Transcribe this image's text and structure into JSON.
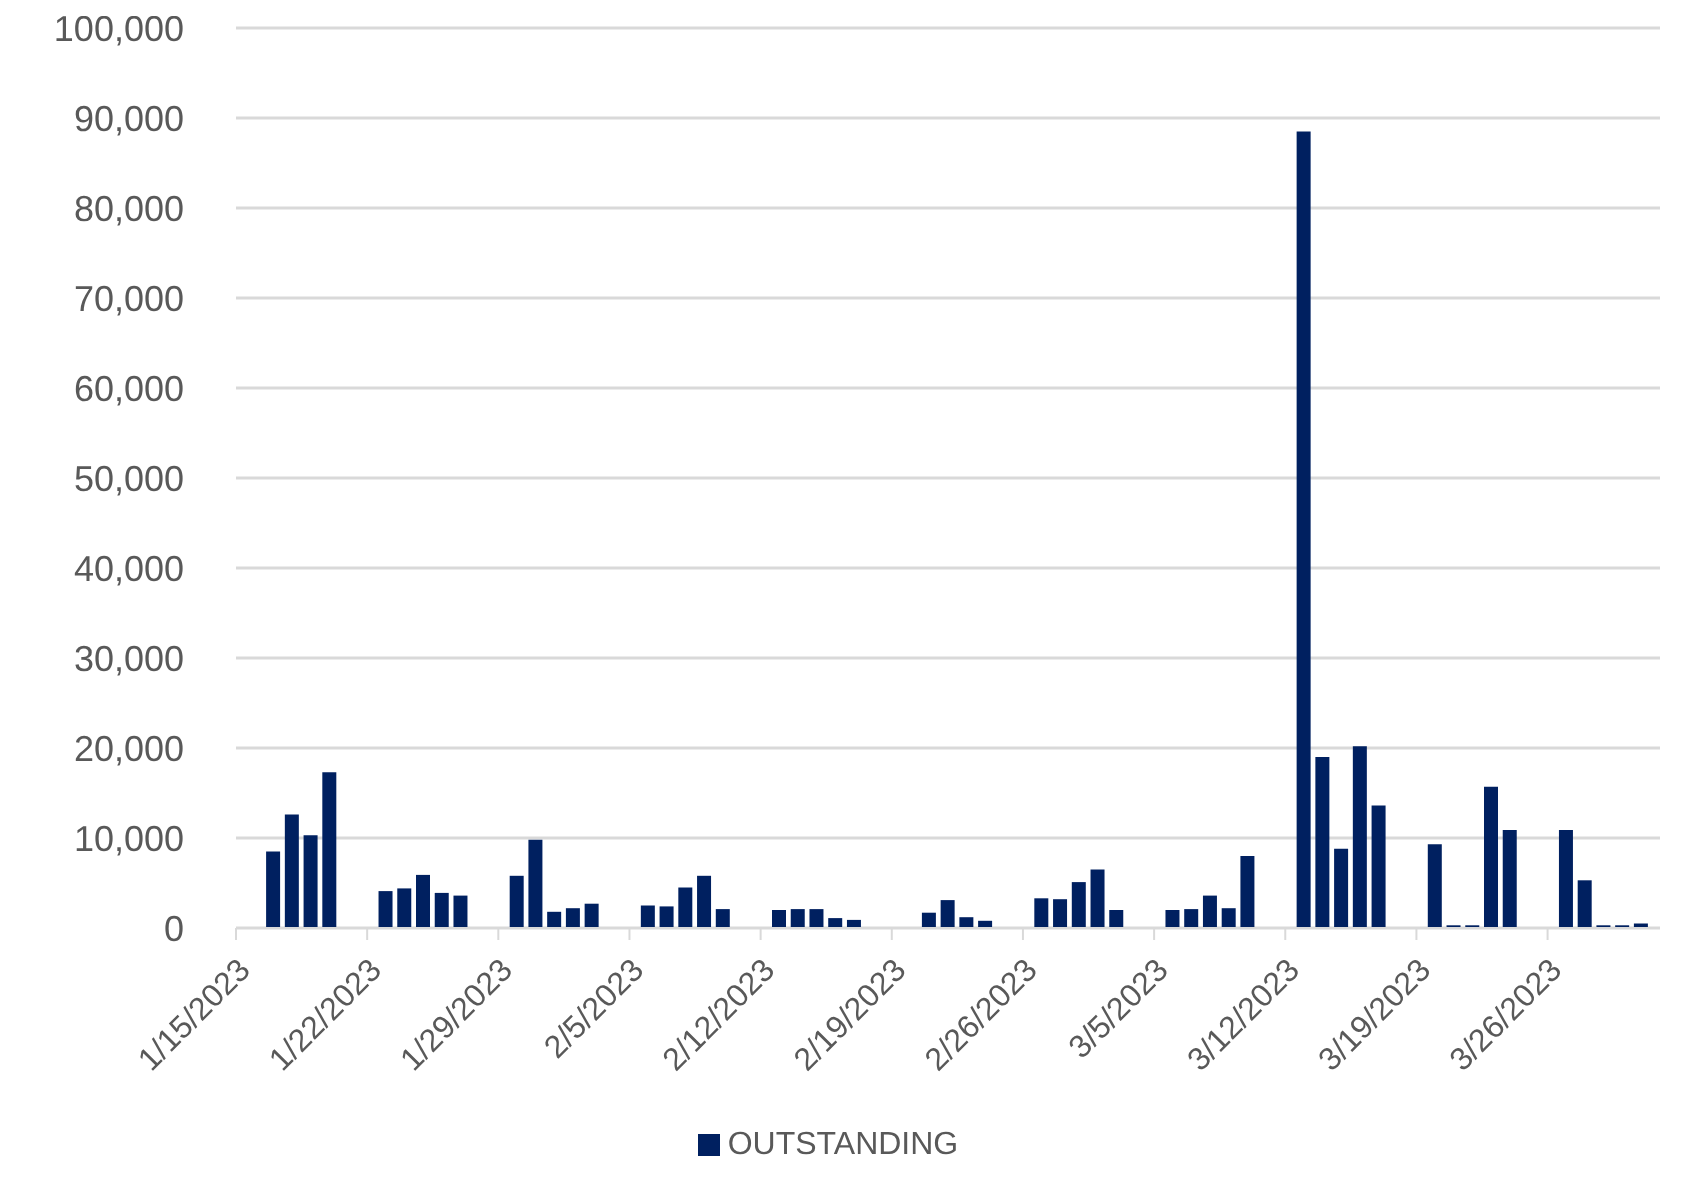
{
  "chart_data": {
    "type": "bar",
    "x": [
      "2023-01-17",
      "2023-01-18",
      "2023-01-19",
      "2023-01-20",
      "2023-01-23",
      "2023-01-24",
      "2023-01-25",
      "2023-01-26",
      "2023-01-27",
      "2023-01-30",
      "2023-01-31",
      "2023-02-01",
      "2023-02-02",
      "2023-02-03",
      "2023-02-06",
      "2023-02-07",
      "2023-02-08",
      "2023-02-09",
      "2023-02-10",
      "2023-02-13",
      "2023-02-14",
      "2023-02-15",
      "2023-02-16",
      "2023-02-17",
      "2023-02-21",
      "2023-02-22",
      "2023-02-23",
      "2023-02-24",
      "2023-02-27",
      "2023-02-28",
      "2023-03-01",
      "2023-03-02",
      "2023-03-03",
      "2023-03-06",
      "2023-03-07",
      "2023-03-08",
      "2023-03-09",
      "2023-03-10",
      "2023-03-13",
      "2023-03-14",
      "2023-03-15",
      "2023-03-16",
      "2023-03-17",
      "2023-03-20",
      "2023-03-21",
      "2023-03-22",
      "2023-03-23",
      "2023-03-24",
      "2023-03-27",
      "2023-03-28",
      "2023-03-29",
      "2023-03-30",
      "2023-03-31"
    ],
    "series": [
      {
        "name": "OUTSTANDING",
        "color": "#002060",
        "values": [
          8500,
          12600,
          10300,
          17300,
          4100,
          4400,
          5900,
          3900,
          3600,
          5800,
          9800,
          1800,
          2200,
          2700,
          2500,
          2400,
          4500,
          5800,
          2100,
          2000,
          2100,
          2100,
          1100,
          900,
          1700,
          3100,
          1200,
          800,
          3300,
          3200,
          5100,
          6500,
          2000,
          2000,
          2100,
          3600,
          2200,
          8000,
          88500,
          19000,
          8800,
          20200,
          13600,
          9300,
          300,
          300,
          15700,
          10900,
          10900,
          5300,
          300,
          300,
          500
        ]
      }
    ],
    "xlim": [
      "2023-01-15",
      "2023-04-01"
    ],
    "xticks": [
      {
        "value": "2023-01-15",
        "label": "1/15/2023"
      },
      {
        "value": "2023-01-22",
        "label": "1/22/2023"
      },
      {
        "value": "2023-01-29",
        "label": "1/29/2023"
      },
      {
        "value": "2023-02-05",
        "label": "2/5/2023"
      },
      {
        "value": "2023-02-12",
        "label": "2/12/2023"
      },
      {
        "value": "2023-02-19",
        "label": "2/19/2023"
      },
      {
        "value": "2023-02-26",
        "label": "2/26/2023"
      },
      {
        "value": "2023-03-05",
        "label": "3/5/2023"
      },
      {
        "value": "2023-03-12",
        "label": "3/12/2023"
      },
      {
        "value": "2023-03-19",
        "label": "3/19/2023"
      },
      {
        "value": "2023-03-26",
        "label": "3/26/2023"
      }
    ],
    "ylim": [
      0,
      100000
    ],
    "yticks": [
      0,
      {
        "value": 10000,
        "label": "10,000"
      },
      {
        "value": 20000,
        "label": "20,000"
      },
      {
        "value": 30000,
        "label": "30,000"
      },
      {
        "value": 40000,
        "label": "40,000"
      },
      {
        "value": 50000,
        "label": "50,000"
      },
      {
        "value": 60000,
        "label": "60,000"
      },
      {
        "value": 70000,
        "label": "70,000"
      },
      {
        "value": 80000,
        "label": "80,000"
      },
      {
        "value": 90000,
        "label": "90,000"
      },
      {
        "value": 100000,
        "label": "100,000"
      }
    ],
    "grid": "y",
    "legend": "bottom"
  }
}
